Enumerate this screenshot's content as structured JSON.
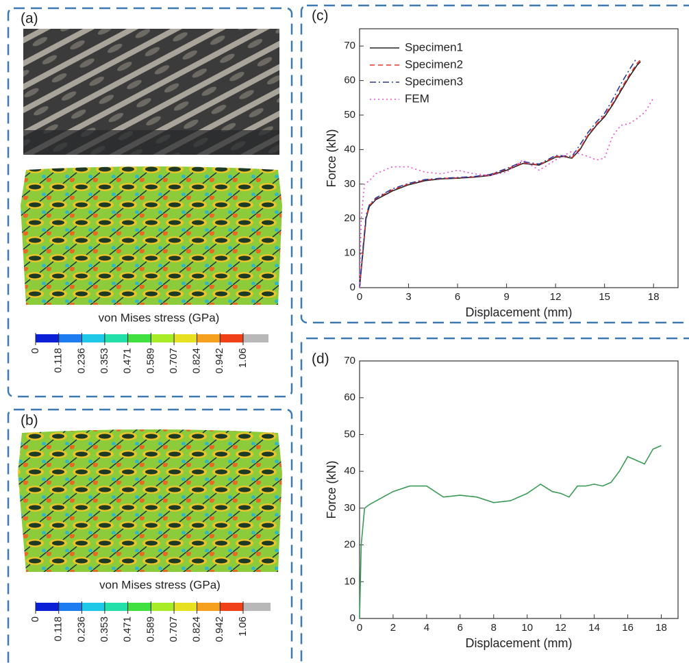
{
  "panels": [
    "(a)",
    "(b)",
    "(c)",
    "(d)"
  ],
  "chart_data": [
    {
      "type": "line",
      "xlabel": "Displacement (mm)",
      "ylabel": "Force (kN)",
      "xlim": [
        0,
        19.5
      ],
      "ylim": [
        0,
        75
      ],
      "xticks": [
        0,
        3,
        6,
        9,
        12,
        15,
        18
      ],
      "yticks": [
        0,
        10,
        20,
        30,
        40,
        50,
        60,
        70
      ],
      "legend": "upper-left",
      "series": [
        {
          "name": "Specimen1",
          "color": "#222222",
          "style": "solid",
          "x": [
            0,
            0.2,
            0.4,
            0.6,
            1,
            2,
            3,
            4,
            5,
            6,
            7,
            8,
            9,
            10,
            11,
            12,
            12.5,
            13,
            13.5,
            14,
            14.5,
            15,
            15.5,
            16,
            16.5,
            17,
            17.2
          ],
          "values": [
            0,
            10,
            20,
            23.5,
            25.5,
            28,
            29.8,
            31,
            31.5,
            31.7,
            32,
            32.5,
            34,
            36,
            35.5,
            37.8,
            38,
            37.5,
            40,
            44,
            47,
            49.5,
            53,
            57,
            61,
            64.5,
            65.5
          ]
        },
        {
          "name": "Specimen2",
          "color": "#e8302a",
          "style": "dashed",
          "x": [
            0,
            0.2,
            0.4,
            0.6,
            1,
            2,
            3,
            4,
            5,
            6,
            7,
            8,
            9,
            10,
            11,
            12,
            12.5,
            13,
            13.5,
            14,
            14.5,
            15,
            15.5,
            16,
            16.5,
            17,
            17.2
          ],
          "values": [
            0,
            10.5,
            20.5,
            23.8,
            25.8,
            28.3,
            30,
            31.2,
            31.6,
            31.8,
            32.1,
            32.7,
            34.3,
            36.2,
            35.6,
            38,
            38.1,
            37.7,
            40.3,
            44.3,
            47.3,
            49.9,
            53.4,
            57.5,
            61.5,
            65,
            66
          ]
        },
        {
          "name": "Specimen3",
          "color": "#2b3a9a",
          "style": "dashdot",
          "x": [
            0,
            0.2,
            0.4,
            0.6,
            1,
            2,
            3,
            4,
            5,
            6,
            7,
            8,
            9,
            10,
            11,
            12,
            12.5,
            13,
            13.3,
            14,
            14.5,
            15,
            15.5,
            16,
            16.5,
            16.9
          ],
          "values": [
            0,
            11,
            21,
            24,
            26,
            28.6,
            30.2,
            31.3,
            31.7,
            31.9,
            32.2,
            32.8,
            34.5,
            36.5,
            35.8,
            38.3,
            38.2,
            38,
            40,
            45,
            48,
            50.5,
            54.5,
            59,
            63,
            66
          ]
        },
        {
          "name": "FEM",
          "color": "#e84fd0",
          "style": "dotted",
          "x": [
            0,
            0.1,
            0.3,
            0.6,
            1,
            2,
            3,
            4,
            5,
            6,
            7,
            8,
            9,
            10,
            11,
            12,
            13,
            14,
            14.5,
            15,
            15.5,
            16,
            16.5,
            17,
            17.5,
            18
          ],
          "values": [
            0,
            20,
            30,
            31,
            33,
            35,
            35,
            33.5,
            33,
            34,
            33,
            32.5,
            33.5,
            37,
            34,
            37,
            39.5,
            38,
            37,
            37.5,
            44,
            47,
            47.5,
            49,
            51,
            55
          ]
        }
      ]
    },
    {
      "type": "line",
      "xlabel": "Displacement (mm)",
      "ylabel": "Force (kN)",
      "xlim": [
        0,
        19
      ],
      "ylim": [
        0,
        70
      ],
      "xticks": [
        0,
        2,
        4,
        6,
        8,
        10,
        12,
        14,
        16,
        18
      ],
      "yticks": [
        0,
        10,
        20,
        30,
        40,
        50,
        60,
        70
      ],
      "series": [
        {
          "color": "#3a9a55",
          "style": "solid",
          "x": [
            0,
            0.1,
            0.3,
            0.6,
            1,
            2,
            3,
            4,
            5,
            6,
            7,
            8,
            9,
            10,
            10.8,
            11.5,
            12,
            12.5,
            13,
            13.5,
            14,
            14.5,
            15,
            15.5,
            16,
            16.5,
            17,
            17.5,
            18
          ],
          "values": [
            0,
            20,
            30,
            31,
            32,
            34.5,
            36,
            36,
            33,
            33.5,
            33,
            31.5,
            32,
            34,
            36.5,
            34.5,
            34,
            33,
            36,
            36,
            36.5,
            36,
            37,
            40,
            44,
            43,
            42,
            46,
            47
          ]
        }
      ]
    },
    {
      "type": "colorbar",
      "label": "von Mises stress (GPa)",
      "lim": [
        0,
        1.06
      ],
      "ticks": [
        0,
        0.118,
        0.236,
        0.353,
        0.471,
        0.589,
        0.707,
        0.824,
        0.942,
        1.06
      ],
      "colors": [
        "#0a1fd6",
        "#1e7cf0",
        "#1ec8e6",
        "#22e0a8",
        "#40e040",
        "#a8ec28",
        "#e6e020",
        "#f6a020",
        "#f04018"
      ]
    },
    {
      "type": "colorbar",
      "label": "von Mises stress (GPa)",
      "lim": [
        0,
        1.06
      ],
      "ticks": [
        0,
        0.118,
        0.236,
        0.353,
        0.471,
        0.589,
        0.707,
        0.824,
        0.942,
        1.06
      ],
      "colors": [
        "#0a1fd6",
        "#1e7cf0",
        "#1ec8e6",
        "#22e0a8",
        "#40e040",
        "#a8ec28",
        "#e6e020",
        "#f6a020",
        "#f04018"
      ]
    }
  ]
}
